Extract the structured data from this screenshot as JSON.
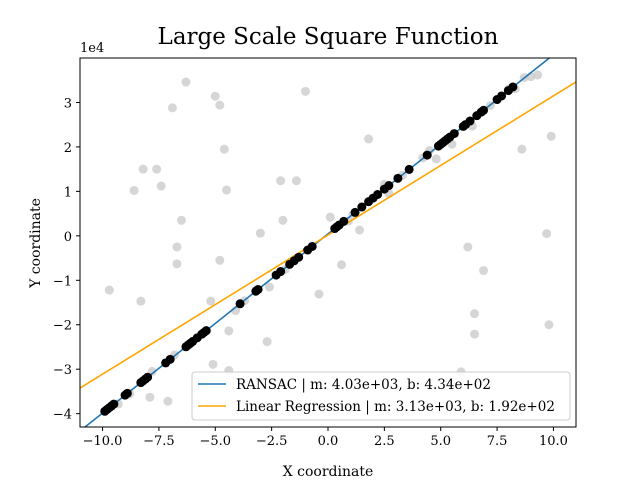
{
  "chart_data": {
    "type": "scatter",
    "title": "Large Scale Square Function",
    "xlabel": "X coordinate",
    "ylabel": "Y coordinate",
    "y_offset_label": "1e4",
    "xlim": [
      -11.0,
      11.0
    ],
    "ylim": [
      -43000,
      40000
    ],
    "y_scale_factor": 10000,
    "xticks": [
      -10.0,
      -7.5,
      -5.0,
      -2.5,
      0.0,
      2.5,
      5.0,
      7.5,
      10.0
    ],
    "xtick_labels": [
      "−10.0",
      "−7.5",
      "−5.0",
      "−2.5",
      "0.0",
      "2.5",
      "5.0",
      "7.5",
      "10.0"
    ],
    "yticks": [
      -40000,
      -30000,
      -20000,
      -10000,
      0,
      10000,
      20000,
      30000
    ],
    "ytick_labels": [
      "−4",
      "−3",
      "−2",
      "−1",
      "0",
      "1",
      "2",
      "3"
    ],
    "legend_position": "lower-right",
    "colors": {
      "ransac": "#1f77b4",
      "linear": "#ffa500",
      "inlier": "#000000",
      "outlier": "#c8c8c8"
    },
    "series": [
      {
        "name": "RANSAC | m: 4.03e+03, b: 4.34e+02",
        "kind": "line",
        "slope": 4030,
        "intercept": 434
      },
      {
        "name": "Linear Regression | m: 3.13e+03, b: 1.92e+02",
        "kind": "line",
        "slope": 3130,
        "intercept": 192
      }
    ],
    "inlier_x": [
      -9.9,
      -9.8,
      -9.7,
      -9.6,
      -9.5,
      -9.0,
      -8.9,
      -8.3,
      -8.2,
      -8.1,
      -8.0,
      -7.2,
      -7.0,
      -6.3,
      -6.2,
      -6.1,
      -6.0,
      -5.8,
      -5.6,
      -5.5,
      -5.4,
      -3.9,
      -3.2,
      -3.1,
      -2.3,
      -2.1,
      -1.7,
      -1.5,
      -1.3,
      -0.9,
      -0.7,
      0.3,
      0.4,
      0.5,
      0.7,
      1.2,
      1.5,
      1.8,
      2.0,
      2.2,
      2.5,
      2.7,
      3.1,
      3.6,
      4.4,
      4.9,
      5.0,
      5.1,
      5.2,
      5.3,
      5.4,
      5.6,
      6.0,
      6.1,
      6.3,
      6.6,
      6.8,
      6.9,
      7.5,
      7.7,
      8.0,
      8.2
    ],
    "outliers": [
      [
        -9.7,
        -12200
      ],
      [
        -8.6,
        10200
      ],
      [
        -8.3,
        -14700
      ],
      [
        -8.2,
        15000
      ],
      [
        -7.9,
        -36300
      ],
      [
        -7.6,
        15000
      ],
      [
        -7.4,
        11200
      ],
      [
        -7.1,
        -37200
      ],
      [
        -6.9,
        28800
      ],
      [
        -6.7,
        -6300
      ],
      [
        -6.7,
        -2500
      ],
      [
        -6.5,
        3500
      ],
      [
        -6.3,
        34600
      ],
      [
        -5.0,
        31400
      ],
      [
        -4.8,
        29400
      ],
      [
        -4.6,
        19500
      ],
      [
        -4.5,
        10300
      ],
      [
        -4.8,
        -5500
      ],
      [
        -4.4,
        -21400
      ],
      [
        -4.4,
        -30300
      ],
      [
        -5.2,
        -14700
      ],
      [
        -5.1,
        -28900
      ],
      [
        -3.0,
        600
      ],
      [
        -2.7,
        -23800
      ],
      [
        -2.1,
        12400
      ],
      [
        -2.0,
        3500
      ],
      [
        -1.4,
        12400
      ],
      [
        -1.0,
        32500
      ],
      [
        -0.4,
        -13100
      ],
      [
        0.1,
        4200
      ],
      [
        0.6,
        -6500
      ],
      [
        1.4,
        1300
      ],
      [
        1.8,
        21800
      ],
      [
        2.7,
        9500
      ],
      [
        4.5,
        19200
      ],
      [
        5.4,
        -33100
      ],
      [
        5.9,
        -30600
      ],
      [
        6.2,
        -2500
      ],
      [
        6.5,
        -17500
      ],
      [
        6.5,
        -22100
      ],
      [
        6.9,
        -7800
      ],
      [
        8.6,
        19500
      ],
      [
        9.7,
        500
      ],
      [
        9.8,
        -20000
      ],
      [
        9.9,
        22400
      ],
      [
        9.0,
        35800
      ],
      [
        8.3,
        33100
      ],
      [
        8.0,
        33000
      ],
      [
        -8.8,
        -35500
      ],
      [
        -7.8,
        -30500
      ],
      [
        -3.7,
        -14600
      ],
      [
        -2.6,
        -11500
      ],
      [
        0.9,
        3300
      ],
      [
        2.5,
        11600
      ],
      [
        4.8,
        17300
      ],
      [
        5.5,
        20600
      ],
      [
        6.4,
        24700
      ],
      [
        -9.3,
        -37800
      ],
      [
        -6.8,
        -26800
      ],
      [
        -4.1,
        -16800
      ],
      [
        -1.9,
        -7600
      ],
      [
        1.1,
        4800
      ],
      [
        3.3,
        13600
      ],
      [
        4.2,
        17500
      ],
      [
        7.2,
        29300
      ],
      [
        8.7,
        35600
      ],
      [
        9.3,
        36200
      ]
    ]
  }
}
